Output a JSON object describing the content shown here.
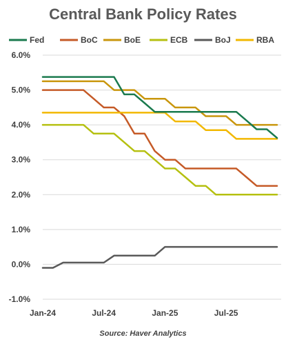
{
  "chart_data": {
    "type": "line",
    "title": "Central Bank Policy Rates",
    "source": "Source: Haver Analytics",
    "x": [
      "2024-01",
      "2024-02",
      "2024-03",
      "2024-04",
      "2024-05",
      "2024-06",
      "2024-07",
      "2024-08",
      "2024-09",
      "2024-10",
      "2024-11",
      "2024-12",
      "2025-01",
      "2025-02",
      "2025-03",
      "2025-04",
      "2025-05",
      "2025-06",
      "2025-07",
      "2025-08",
      "2025-09",
      "2025-10",
      "2025-11",
      "2025-12"
    ],
    "x_tick_labels": [
      "Jan-24",
      "Jul-24",
      "Jan-25",
      "Jul-25"
    ],
    "x_tick_positions": [
      "2024-01",
      "2024-07",
      "2025-01",
      "2025-07"
    ],
    "ylim": [
      -1.0,
      6.0
    ],
    "y_ticks": [
      "-1.0%",
      "0.0%",
      "1.0%",
      "2.0%",
      "3.0%",
      "4.0%",
      "5.0%",
      "6.0%"
    ],
    "legend_position": "top",
    "series": [
      {
        "name": "Fed",
        "color": "#1a7a4e",
        "values": [
          5.375,
          5.375,
          5.375,
          5.375,
          5.375,
          5.375,
          5.375,
          5.375,
          4.875,
          4.875,
          4.625,
          4.375,
          4.375,
          4.375,
          4.375,
          4.375,
          4.375,
          4.375,
          4.375,
          4.375,
          4.125,
          3.875,
          3.875,
          3.625
        ]
      },
      {
        "name": "BoC",
        "color": "#c55a27",
        "values": [
          5.0,
          5.0,
          5.0,
          5.0,
          5.0,
          4.75,
          4.5,
          4.5,
          4.25,
          3.75,
          3.75,
          3.25,
          3.0,
          3.0,
          2.75,
          2.75,
          2.75,
          2.75,
          2.75,
          2.75,
          2.5,
          2.25,
          2.25,
          2.25
        ]
      },
      {
        "name": "BoE",
        "color": "#c9960c",
        "values": [
          5.25,
          5.25,
          5.25,
          5.25,
          5.25,
          5.25,
          5.25,
          5.0,
          5.0,
          5.0,
          4.75,
          4.75,
          4.75,
          4.5,
          4.5,
          4.5,
          4.25,
          4.25,
          4.25,
          4.0,
          4.0,
          4.0,
          4.0,
          4.0
        ]
      },
      {
        "name": "ECB",
        "color": "#b5c010",
        "values": [
          4.0,
          4.0,
          4.0,
          4.0,
          4.0,
          3.75,
          3.75,
          3.75,
          3.5,
          3.25,
          3.25,
          3.0,
          2.75,
          2.75,
          2.5,
          2.25,
          2.25,
          2.0,
          2.0,
          2.0,
          2.0,
          2.0,
          2.0,
          2.0
        ]
      },
      {
        "name": "BoJ",
        "color": "#595959",
        "values": [
          -0.1,
          -0.1,
          0.05,
          0.05,
          0.05,
          0.05,
          0.05,
          0.25,
          0.25,
          0.25,
          0.25,
          0.25,
          0.5,
          0.5,
          0.5,
          0.5,
          0.5,
          0.5,
          0.5,
          0.5,
          0.5,
          0.5,
          0.5,
          0.5
        ]
      },
      {
        "name": "RBA",
        "color": "#f2b800",
        "values": [
          4.35,
          4.35,
          4.35,
          4.35,
          4.35,
          4.35,
          4.35,
          4.35,
          4.35,
          4.35,
          4.35,
          4.35,
          4.35,
          4.1,
          4.1,
          4.1,
          3.85,
          3.85,
          3.85,
          3.6,
          3.6,
          3.6,
          3.6,
          3.6
        ]
      }
    ]
  }
}
